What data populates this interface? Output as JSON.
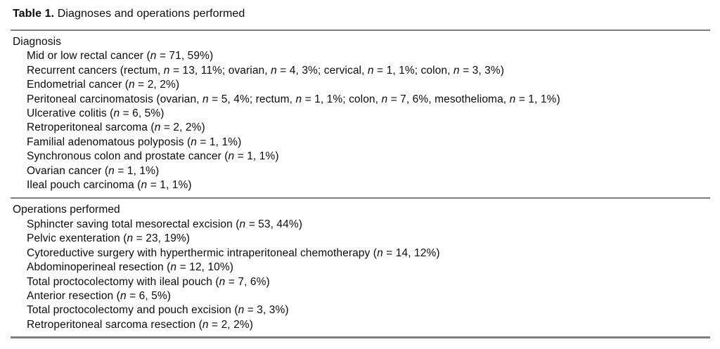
{
  "page": {
    "title_bold": "Table 1.",
    "title_rest": " Diagnoses and operations performed"
  },
  "table": {
    "text_color": "#0b0b0b",
    "rule_color": "#7e7e7e",
    "sections": [
      {
        "header": "Diagnosis",
        "rows": [
          "Mid or low rectal cancer (n = 71, 59%)",
          "Recurrent cancers (rectum, n = 13, 11%; ovarian, n = 4, 3%; cervical, n = 1, 1%; colon, n = 3, 3%)",
          "Endometrial cancer (n = 2, 2%)",
          "Peritoneal carcinomatosis (ovarian, n = 5, 4%; rectum, n = 1, 1%; colon, n = 7, 6%, mesothelioma, n = 1, 1%)",
          "Ulcerative colitis (n = 6, 5%)",
          "Retroperitoneal sarcoma (n = 2, 2%)",
          "Familial adenomatous polyposis (n = 1, 1%)",
          "Synchronous colon and prostate cancer (n = 1, 1%)",
          "Ovarian cancer (n = 1, 1%)",
          "Ileal pouch carcinoma (n = 1, 1%)"
        ]
      },
      {
        "header": "Operations performed",
        "rows": [
          "Sphincter saving total mesorectal excision (n = 53, 44%)",
          "Pelvic exenteration (n = 23, 19%)",
          "Cytoreductive surgery with hyperthermic intraperitoneal chemotherapy (n = 14, 12%)",
          "Abdominoperineal resection (n = 12, 10%)",
          "Total proctocolectomy with ileal pouch (n = 7, 6%)",
          "Anterior resection (n = 6, 5%)",
          "Total proctocolectomy and pouch excision (n = 3, 3%)",
          "Retroperitoneal sarcoma resection (n = 2, 2%)"
        ]
      }
    ]
  }
}
